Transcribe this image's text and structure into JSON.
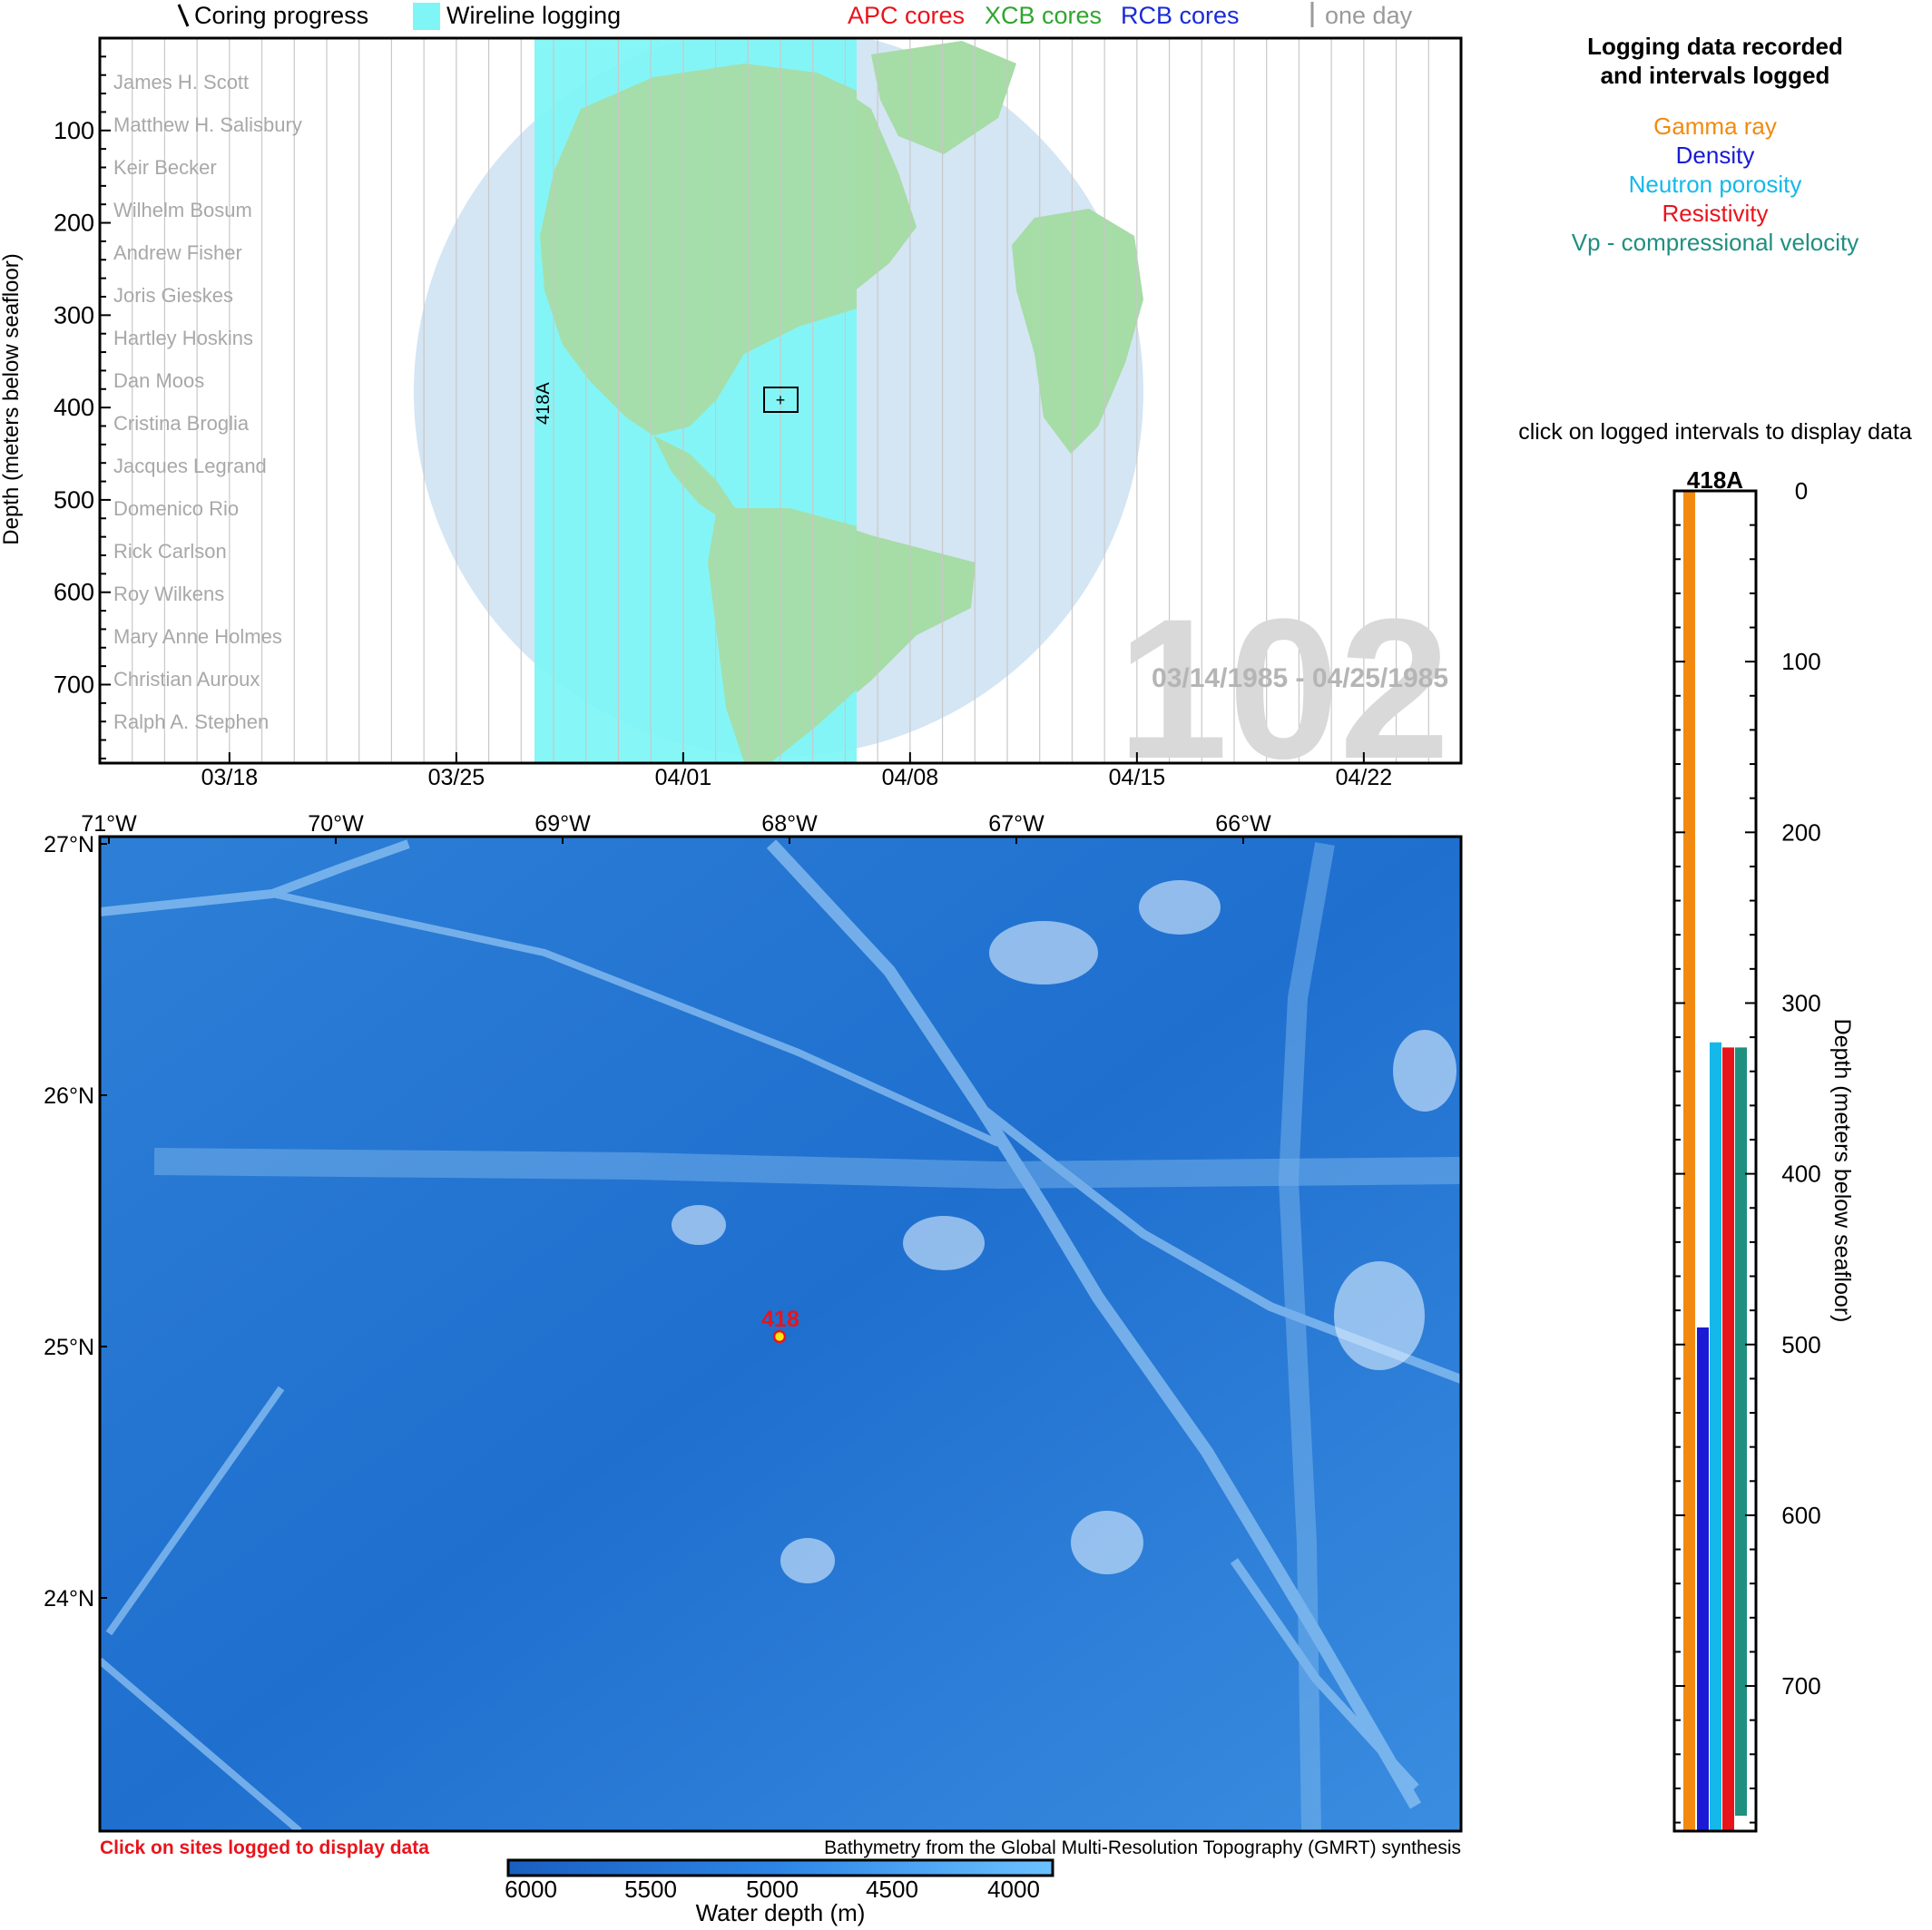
{
  "legend_top": {
    "coring_label": "Coring progress",
    "wireline_label": "Wireline logging",
    "apc_label": "APC cores",
    "xcb_label": "XCB cores",
    "rcb_label": "RCB cores",
    "oneday_label": "one day",
    "colors": {
      "apc": "#e8141c",
      "xcb": "#2ea62e",
      "rcb": "#1a2bd4",
      "oneday": "#9a9a9a",
      "wireline": "#7ff5f5"
    }
  },
  "timeline": {
    "y_axis_label": "Depth (meters below seafloor)",
    "y_ticks": [
      "100",
      "200",
      "300",
      "400",
      "500",
      "600",
      "700"
    ],
    "x_ticks": [
      "03/18",
      "03/25",
      "04/01",
      "04/08",
      "04/15",
      "04/22"
    ],
    "scientists": [
      "James H. Scott",
      "Matthew H. Salisbury",
      "Keir Becker",
      "Wilhelm Bosum",
      "Andrew Fisher",
      "Joris Gieskes",
      "Hartley Hoskins",
      "Dan Moos",
      "Cristina Broglia",
      "Jacques Legrand",
      "Domenico Rio",
      "Rick Carlson",
      "Roy Wilkens",
      "Mary Anne Holmes",
      "Christian Auroux",
      "Ralph A. Stephen"
    ],
    "leg_number": "102",
    "date_range": "03/14/1985 - 04/25/1985",
    "hole_label": "418A"
  },
  "map": {
    "lon_labels": [
      "71°W",
      "70°W",
      "69°W",
      "68°W",
      "67°W",
      "66°W"
    ],
    "lat_labels": [
      "27°N",
      "26°N",
      "25°N",
      "24°N"
    ],
    "site_label": "418",
    "click_note": "Click on sites logged to display data",
    "credit": "Bathymetry from the Global Multi-Resolution Topography (GMRT) synthesis",
    "colorbar_ticks": [
      "6000",
      "5500",
      "5000",
      "4500",
      "4000"
    ],
    "colorbar_label": "Water depth (m)"
  },
  "right_panel": {
    "title_line1": "Logging data recorded",
    "title_line2": "and intervals logged",
    "legend": [
      {
        "label": "Gamma ray",
        "color": "#f28a0f"
      },
      {
        "label": "Density",
        "color": "#1a1ad4"
      },
      {
        "label": "Neutron porosity",
        "color": "#14b9ea"
      },
      {
        "label": "Resistivity",
        "color": "#e8141c"
      },
      {
        "label": "Vp - compressional velocity",
        "color": "#1f8f80"
      }
    ],
    "click_note": "click on logged intervals to display data",
    "hole_title": "418A",
    "depth_ticks": [
      "0",
      "100",
      "200",
      "300",
      "400",
      "500",
      "600",
      "700"
    ],
    "axis_label": "Depth (meters below seafloor)"
  },
  "chart_data": {
    "type": "bar",
    "title": "418A",
    "ylabel": "Depth (meters below seafloor)",
    "ylim": [
      0,
      785
    ],
    "series": [
      {
        "name": "Gamma ray",
        "top": 0,
        "bottom": 785
      },
      {
        "name": "Density",
        "top": 490,
        "bottom": 785
      },
      {
        "name": "Neutron porosity",
        "top": 323,
        "bottom": 785
      },
      {
        "name": "Resistivity",
        "top": 326,
        "bottom": 785
      },
      {
        "name": "Vp - compressional velocity",
        "top": 326,
        "bottom": 776
      }
    ]
  }
}
